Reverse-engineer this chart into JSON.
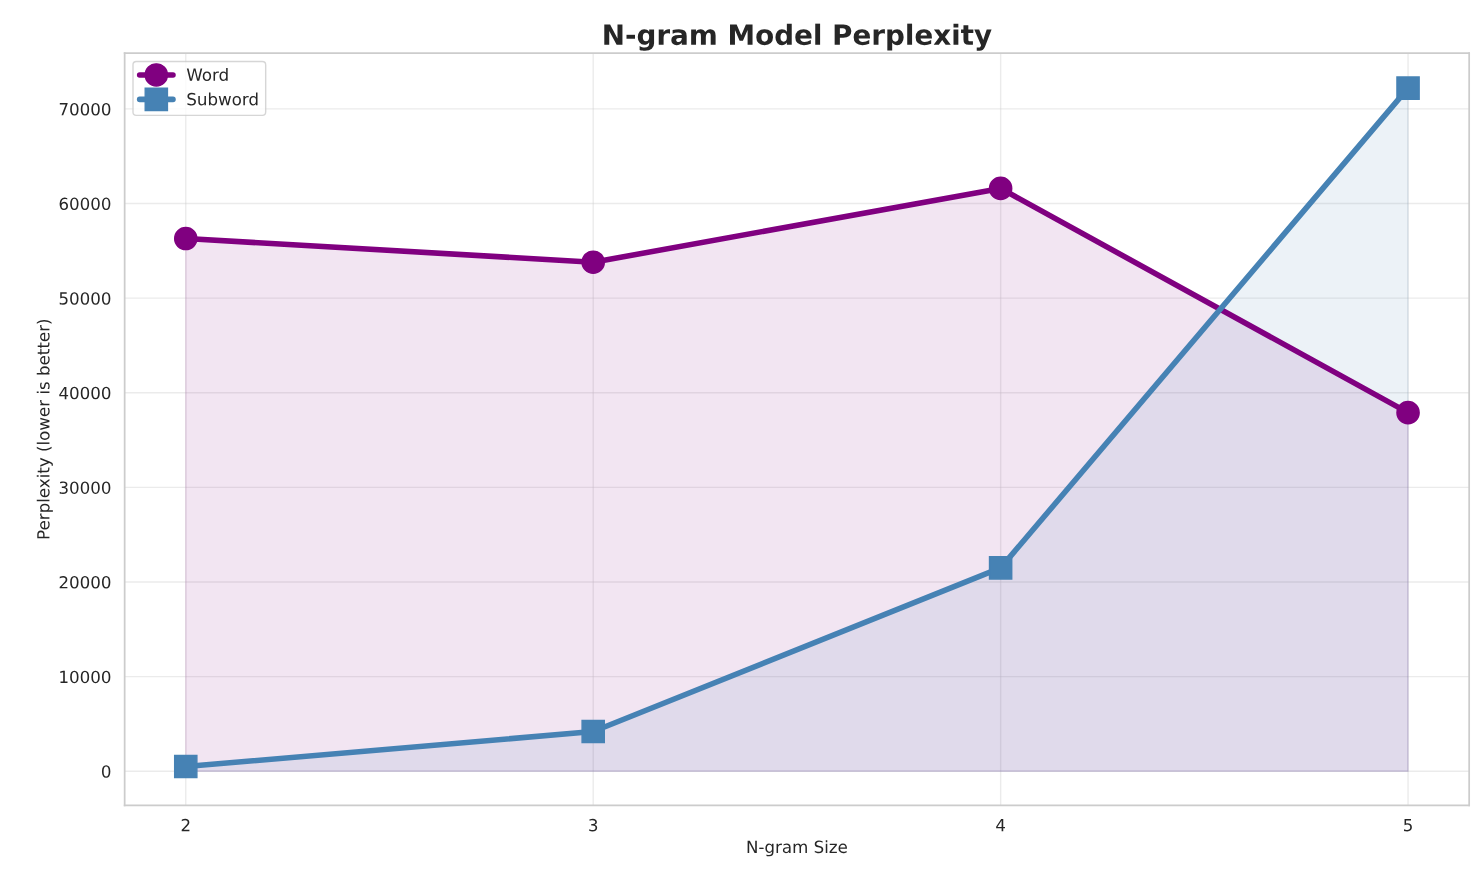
{
  "chart_data": {
    "type": "area",
    "title": "N-gram Model Perplexity",
    "xlabel": "N-gram Size",
    "ylabel": "Perplexity (lower is better)",
    "x": [
      2,
      3,
      4,
      5
    ],
    "series": [
      {
        "name": "Word",
        "color": "#800080",
        "marker": "circle",
        "values": [
          56300,
          53800,
          61600,
          37900
        ]
      },
      {
        "name": "Subword",
        "color": "#4682b4",
        "marker": "square",
        "values": [
          500,
          4200,
          21500,
          72200
        ]
      }
    ],
    "xlim": [
      1.85,
      5.15
    ],
    "xticks": [
      2,
      3,
      4,
      5
    ],
    "ylim": [
      -3600,
      75900
    ],
    "yticks": [
      0,
      10000,
      20000,
      30000,
      40000,
      50000,
      60000,
      70000
    ],
    "grid": true,
    "legend": "top left",
    "line_style": "solid"
  }
}
